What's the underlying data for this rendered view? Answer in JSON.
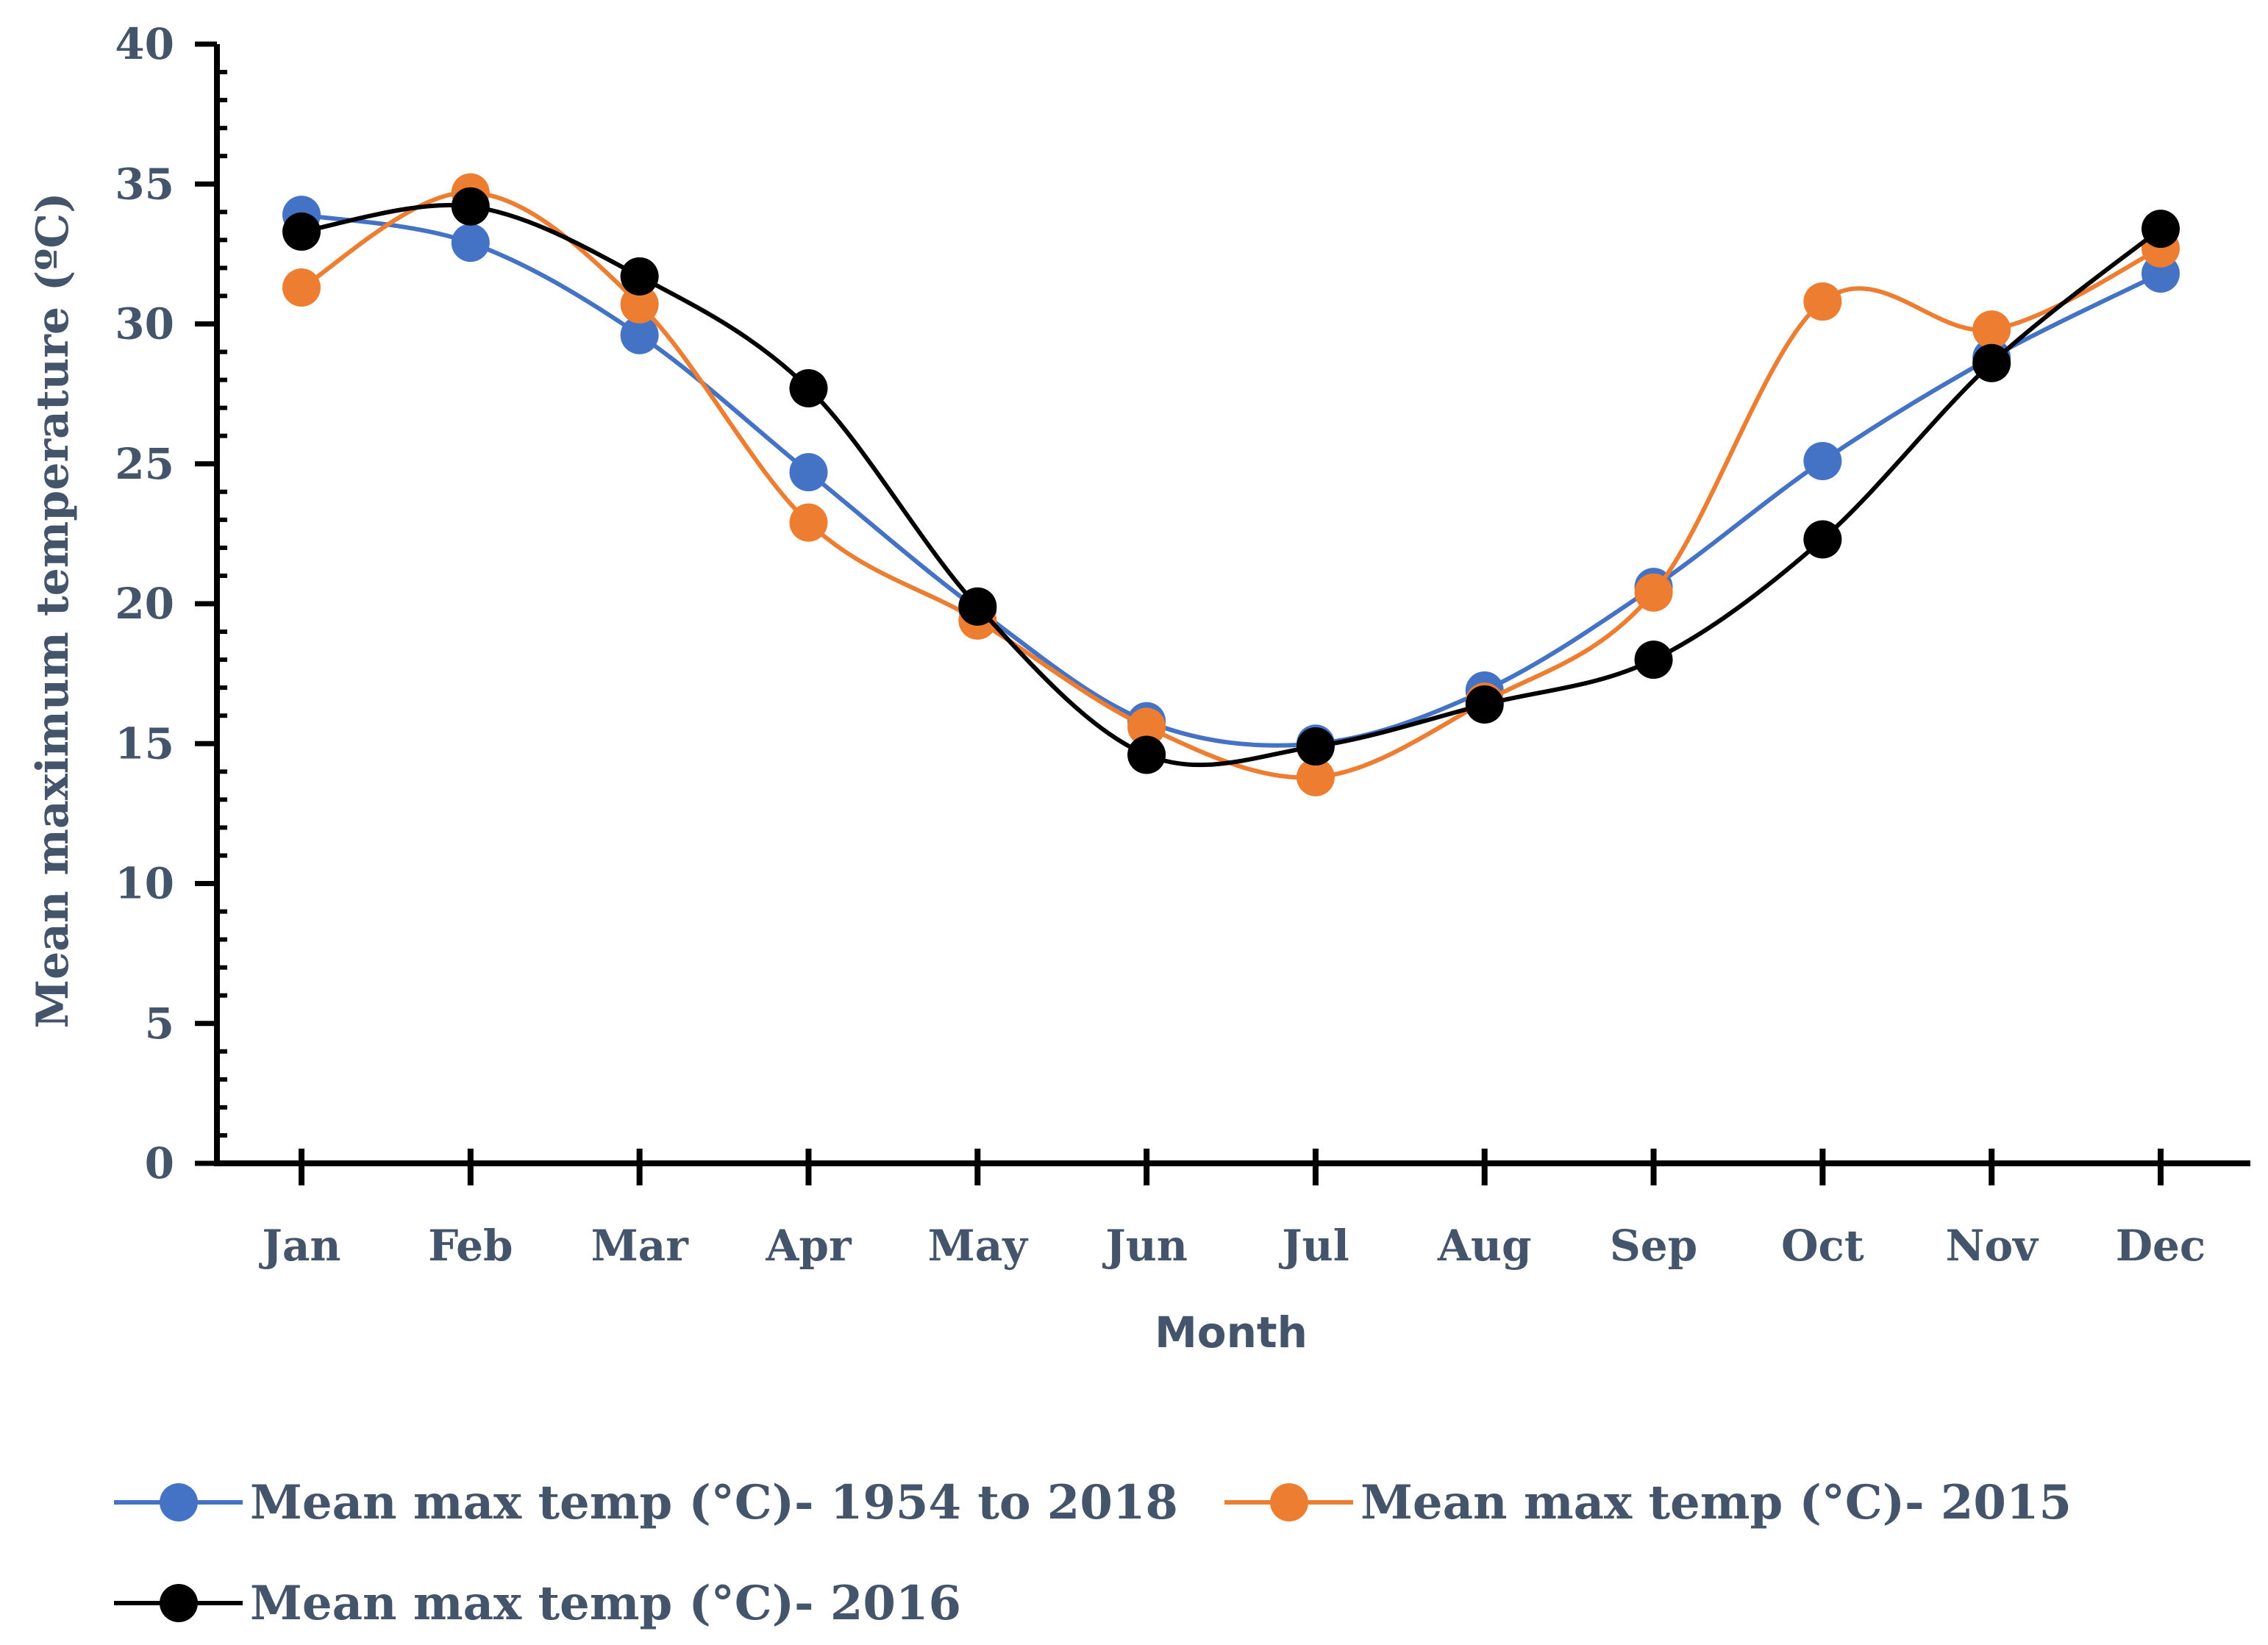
{
  "chart_data": {
    "type": "line",
    "title": "",
    "xlabel": "Month",
    "ylabel": "Mean maximum temperature (ºC)",
    "ylim": [
      0,
      40
    ],
    "yticks": [
      0,
      5,
      10,
      15,
      20,
      25,
      30,
      35,
      40
    ],
    "categories": [
      "Jan",
      "Feb",
      "Mar",
      "Apr",
      "May",
      "Jun",
      "Jul",
      "Aug",
      "Sep",
      "Oct",
      "Nov",
      "Dec"
    ],
    "grid": false,
    "legend_position": "bottom",
    "series": [
      {
        "name": "Mean max temp (°C)- 1954 to 2018",
        "color": "#4472C4",
        "values": [
          33.9,
          32.9,
          29.6,
          24.7,
          19.8,
          15.8,
          15.0,
          16.9,
          20.6,
          25.1,
          28.8,
          31.8
        ]
      },
      {
        "name": "Mean max temp (°C)-  2015",
        "color": "#ED7D31",
        "values": [
          31.3,
          34.7,
          30.7,
          22.9,
          19.4,
          15.6,
          13.8,
          16.5,
          20.4,
          30.8,
          29.8,
          32.7
        ]
      },
      {
        "name": "Mean max temp (°C)-  2016",
        "color": "#000000",
        "values": [
          33.3,
          34.2,
          31.7,
          27.7,
          19.9,
          14.6,
          14.9,
          16.4,
          18.0,
          22.3,
          28.6,
          33.4
        ]
      }
    ]
  }
}
